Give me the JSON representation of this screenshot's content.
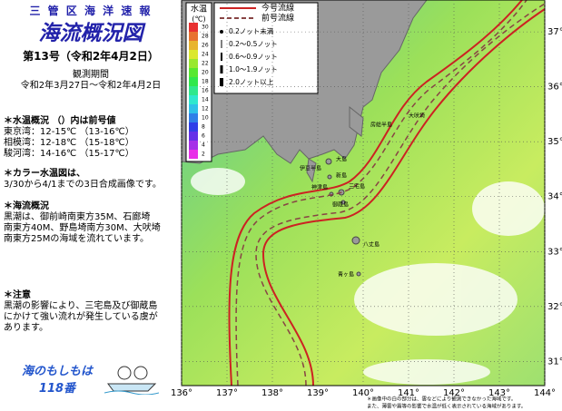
{
  "header": {
    "office": "三 管 区 海 洋 速 報",
    "title": "海流概況図",
    "issue": "第13号（令和2年4月2日）",
    "period_label": "観測期間",
    "period": "令和2年3月27日～令和2年4月2日"
  },
  "sections": [
    {
      "heading": "＊水温概況 （）内は前号値",
      "lines": [
        "東京湾：12-15℃ （13-16℃）",
        "相模湾：12-18℃ （15-18℃）",
        "駿河湾：14-16℃ （15-17℃）"
      ]
    },
    {
      "heading": "＊カラー水温図は、",
      "lines": [
        "3/30から4/1までの3日合成画像です。"
      ]
    },
    {
      "heading": "＊海流概況",
      "lines": [
        "黒潮は、御前崎南東方35M、石廊埼",
        "南東方40M、野島埼南方30M、大吠埼",
        "南東方25Mの海域を流れています。"
      ]
    },
    {
      "heading": "＊注意",
      "lines": [
        "黒潮の影響により、三宅島及び御蔵島",
        "にかけて強い流れが発生している虞が",
        "あります。"
      ]
    }
  ],
  "badge": {
    "line1": "海のもしもは",
    "line2": "118番"
  },
  "map": {
    "xlim": [
      136,
      144
    ],
    "ylim": [
      30.56,
      37.58
    ],
    "xticks": [
      {
        "value": 136,
        "label": "136°"
      },
      {
        "value": 137,
        "label": "137°"
      },
      {
        "value": 138,
        "label": "138°"
      },
      {
        "value": 139,
        "label": "139°"
      },
      {
        "value": 140,
        "label": "140°"
      },
      {
        "value": 141,
        "label": "141°"
      },
      {
        "value": 142,
        "label": "142°"
      },
      {
        "value": 143,
        "label": "143°"
      },
      {
        "value": 144,
        "label": "144°"
      }
    ],
    "yticks": [
      {
        "value": 31,
        "label": "31°"
      },
      {
        "value": 32,
        "label": "32°"
      },
      {
        "value": 33,
        "label": "33°"
      },
      {
        "value": 34,
        "label": "34°"
      },
      {
        "value": 35,
        "label": "35°"
      },
      {
        "value": 36,
        "label": "36°"
      },
      {
        "value": 37,
        "label": "37°"
      }
    ],
    "colorbar": {
      "title": "水温",
      "unit": "(℃)",
      "ticks": [
        30,
        28,
        26,
        24,
        22,
        20,
        18,
        16,
        14,
        12,
        10,
        8,
        6,
        4,
        2
      ]
    },
    "legend": {
      "lines": [
        "今号流線",
        "前号流線"
      ],
      "speeds": [
        "0.2ノット未満",
        "0.2～0.5ノット",
        "0.6～0.9ノット",
        "1.0～1.9ノット",
        "2.0ノット以上"
      ]
    },
    "places": [
      "大島",
      "新島",
      "神津島",
      "三宅島",
      "御蔵島",
      "八丈島",
      "青ヶ島",
      "伊豆半島",
      "房総半島",
      "大吠埼"
    ],
    "notes": [
      "＊画像中の白の部分は、雲などにより観測できなかった海域です。",
      "また、薄雲や霧等の影響で水温が低く表示されている海域があります。"
    ]
  }
}
